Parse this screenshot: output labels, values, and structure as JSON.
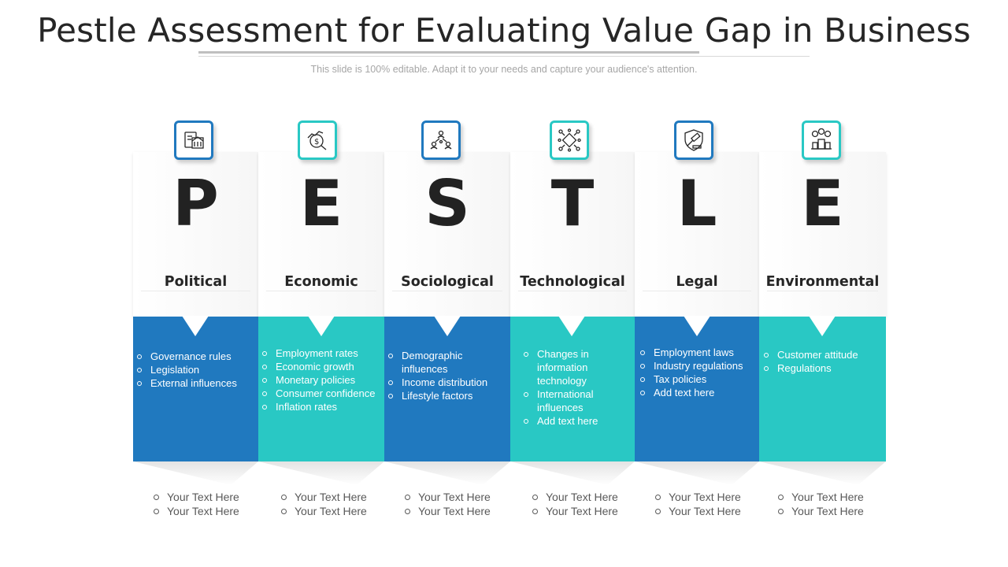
{
  "header": {
    "title": "Pestle Assessment for Evaluating Value Gap in Business",
    "subtitle": "This slide is 100% editable. Adapt it to your needs and capture your audience's attention."
  },
  "colors": {
    "blue": "#2079bf",
    "teal": "#29c8c4",
    "letter": "#222222"
  },
  "columns": [
    {
      "letter": "P",
      "name": "Political",
      "icon": "government-document-icon",
      "color": "blue",
      "items": [
        "Governance rules",
        "Legislation",
        "External influences"
      ],
      "footer": [
        "Your Text Here",
        "Your Text Here"
      ]
    },
    {
      "letter": "E",
      "name": "Economic",
      "icon": "money-growth-icon",
      "color": "teal",
      "items": [
        "Employment rates",
        "Economic growth",
        "Monetary policies",
        "Consumer confidence",
        "Inflation rates"
      ],
      "footer": [
        "Your Text Here",
        "Your Text Here"
      ]
    },
    {
      "letter": "S",
      "name": "Sociological",
      "icon": "people-network-icon",
      "color": "blue",
      "items": [
        "Demographic influences",
        "Income distribution",
        "Lifestyle factors"
      ],
      "footer": [
        "Your Text Here",
        "Your Text Here"
      ]
    },
    {
      "letter": "T",
      "name": "Technological",
      "icon": "circuit-chip-icon",
      "color": "teal",
      "items": [
        "Changes in information technology",
        "International influences",
        "Add text here"
      ],
      "footer": [
        "Your Text Here",
        "Your Text Here"
      ]
    },
    {
      "letter": "L",
      "name": "Legal",
      "icon": "shield-gavel-icon",
      "color": "blue",
      "items": [
        "Employment laws",
        "Industry regulations",
        "Tax policies",
        "Add text here"
      ],
      "footer": [
        "Your Text Here",
        "Your Text Here"
      ]
    },
    {
      "letter": "E",
      "name": "Environmental",
      "icon": "city-environment-icon",
      "color": "teal",
      "items": [
        "Customer attitude",
        "Regulations"
      ],
      "footer": [
        "Your Text Here",
        "Your Text Here"
      ]
    }
  ]
}
